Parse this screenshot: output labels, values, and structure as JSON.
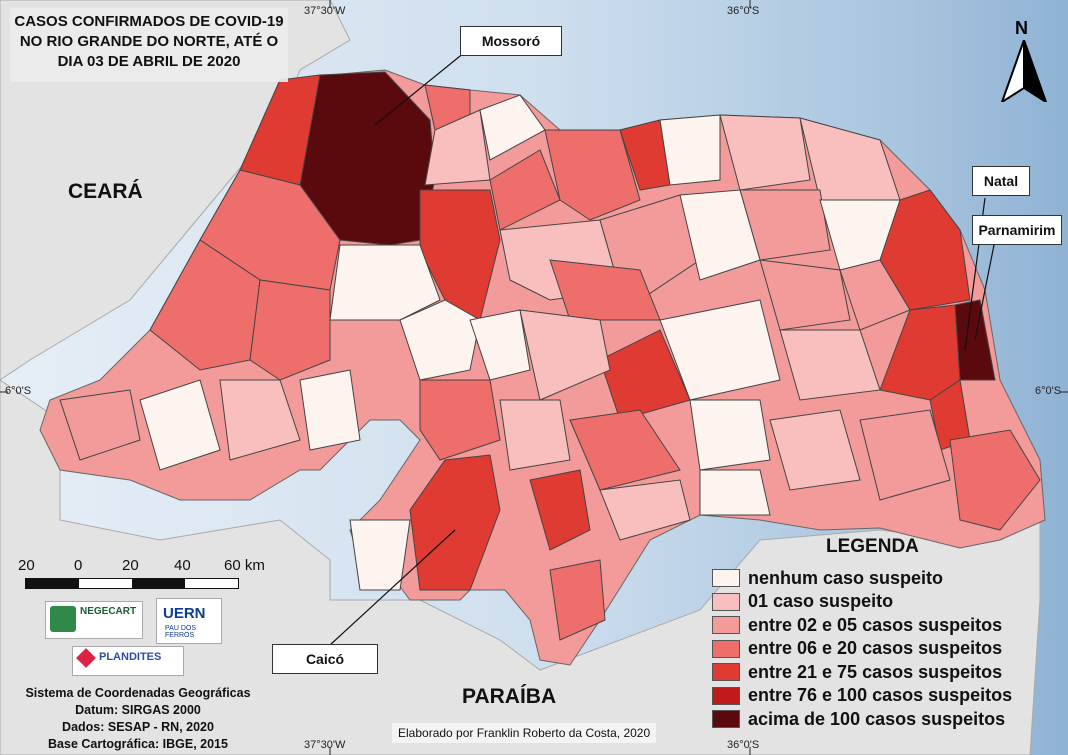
{
  "title_lines": [
    "CASOS CONFIRMADOS DE COVID-19",
    "NO RIO GRANDE DO NORTE, ATÉ O",
    "DIA 03 DE ABRIL DE 2020"
  ],
  "coords": {
    "lon_a": "37°30'W",
    "lon_b": "36°0'S",
    "lat": "6°0'S"
  },
  "north": "N",
  "regions": {
    "ceara": "CEARÁ",
    "paraiba": "PARAÍBA"
  },
  "callouts": {
    "mossoro": "Mossoró",
    "natal": "Natal",
    "parnamirim": "Parnamirim",
    "caico": "Caicó"
  },
  "legend": {
    "title": "LEGENDA",
    "items": [
      {
        "label": "nenhum caso suspeito",
        "color": "#fdf3ef"
      },
      {
        "label": "01 caso suspeito",
        "color": "#f8bfbe"
      },
      {
        "label": "entre 02 e 05 casos suspeitos",
        "color": "#f29b9a"
      },
      {
        "label": "entre 06 e 20 casos suspeitos",
        "color": "#ee6e6c"
      },
      {
        "label": "entre 21 e 75 casos suspeitos",
        "color": "#e03b32"
      },
      {
        "label": "entre 76 e 100 casos suspeitos",
        "color": "#c11a1a"
      },
      {
        "label": "acima de 100 casos suspeitos",
        "color": "#5a0a0d"
      }
    ]
  },
  "scale": {
    "labels": [
      "20",
      "0",
      "20",
      "40",
      "60 km"
    ]
  },
  "logos": {
    "negecart": "NEGECART",
    "uern": "UERN",
    "uern_sub": "PAU DOS FERROS",
    "plandites": "PLANDITES"
  },
  "credits": [
    "Sistema de Coordenadas Geográficas",
    "Datum: SIRGAS 2000",
    "Dados: SESAP - RN, 2020",
    "Base Cartográfica: IBGE, 2015"
  ],
  "author": "Elaborado por Franklin Roberto da Costa, 2020"
}
